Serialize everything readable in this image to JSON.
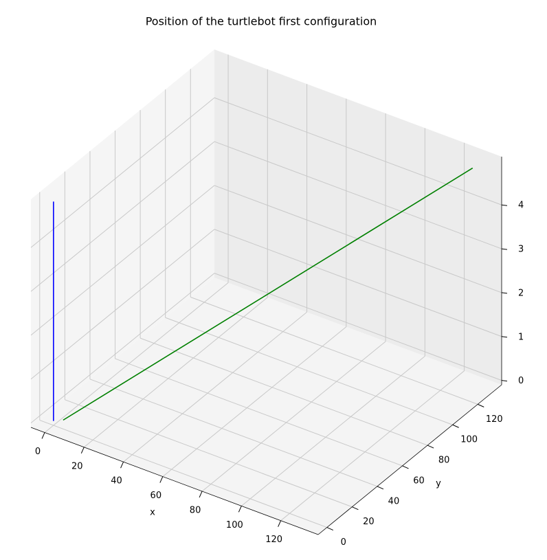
{
  "chart_data": {
    "type": "line3d",
    "title": "Position of the turtlebot first configuration",
    "xlabel": "x",
    "ylabel": "y",
    "xlim": [
      -7,
      139
    ],
    "ylim": [
      -7,
      139
    ],
    "zlim": [
      -0.1,
      5.1
    ],
    "xticks": [
      0,
      20,
      40,
      60,
      80,
      100,
      120
    ],
    "yticks": [
      0,
      20,
      40,
      60,
      80,
      100,
      120
    ],
    "zticks": [
      0,
      1,
      2,
      3,
      4
    ],
    "grid": true,
    "series": [
      {
        "color": "#0000ff",
        "x": [
          0,
          0
        ],
        "y": [
          0,
          0
        ],
        "z": [
          0,
          5
        ]
      },
      {
        "color": "#008000",
        "x": [
          3,
          130
        ],
        "y": [
          3,
          130
        ],
        "z": [
          0,
          4.9
        ]
      }
    ]
  }
}
